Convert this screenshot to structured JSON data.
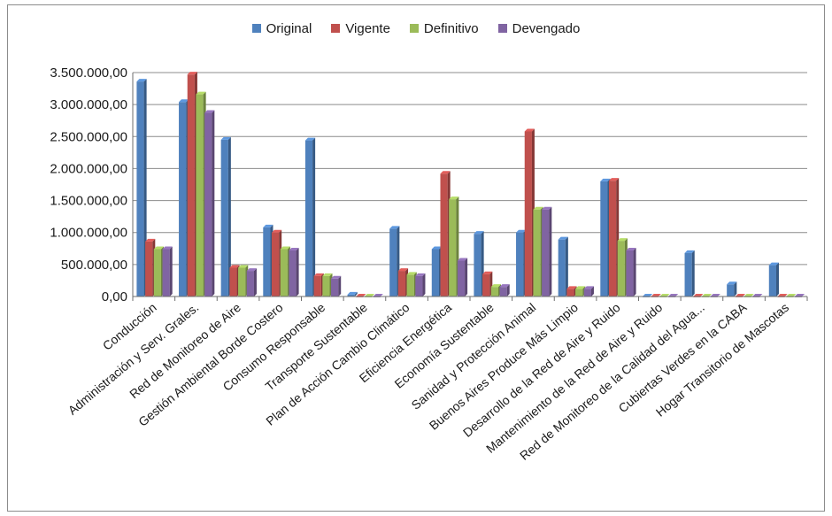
{
  "chart_data": {
    "type": "bar",
    "title": "",
    "xlabel": "",
    "ylabel": "",
    "ylim": [
      0,
      3500000
    ],
    "yticks": [
      0,
      500000,
      1000000,
      1500000,
      2000000,
      2500000,
      3000000,
      3500000
    ],
    "ytick_labels": [
      "0,00",
      "500.000,00",
      "1.000.000,00",
      "1.500.000,00",
      "2.000.000,00",
      "2.500.000,00",
      "3.000.000,00",
      "3.500.000,00"
    ],
    "grid": true,
    "legend_position": "top",
    "categories": [
      "Conducción",
      "Administración y Serv. Grales.",
      "Red de Monitoreo de Aire",
      "Gestión Ambiental Borde Costero",
      "Consumo Responsable",
      "Transporte Sustentable",
      "Plan de Acción Cambio Climático",
      "Eficiencia Energética",
      "Economía Sustentable",
      "Sanidad y Protección Animal",
      "Buenos Aires Produce Más Limpio",
      "Desarrollo de la Red de Aire y Ruido",
      "Mantenimiento de la Red de Aire y Ruido",
      "Red de Monitoreo de la Calidad del Agua...",
      "Cubiertas Verdes en la CABA",
      "Hogar Transitorio de Mascotas"
    ],
    "series": [
      {
        "name": "Original",
        "color": "#4f81bd",
        "values": [
          3360000,
          3040000,
          2450000,
          1080000,
          2440000,
          30000,
          1060000,
          740000,
          980000,
          1000000,
          890000,
          1800000,
          0,
          680000,
          190000,
          490000
        ]
      },
      {
        "name": "Vigente",
        "color": "#c0504d",
        "values": [
          860000,
          3470000,
          450000,
          1000000,
          320000,
          0,
          400000,
          1920000,
          350000,
          2580000,
          120000,
          1810000,
          0,
          0,
          0,
          0
        ]
      },
      {
        "name": "Definitivo",
        "color": "#9bbb59",
        "values": [
          740000,
          3160000,
          450000,
          740000,
          320000,
          0,
          340000,
          1520000,
          150000,
          1360000,
          120000,
          870000,
          0,
          0,
          0,
          0
        ]
      },
      {
        "name": "Devengado",
        "color": "#8064a2",
        "values": [
          740000,
          2870000,
          400000,
          720000,
          280000,
          0,
          320000,
          560000,
          150000,
          1360000,
          120000,
          720000,
          0,
          0,
          0,
          0
        ]
      }
    ]
  }
}
